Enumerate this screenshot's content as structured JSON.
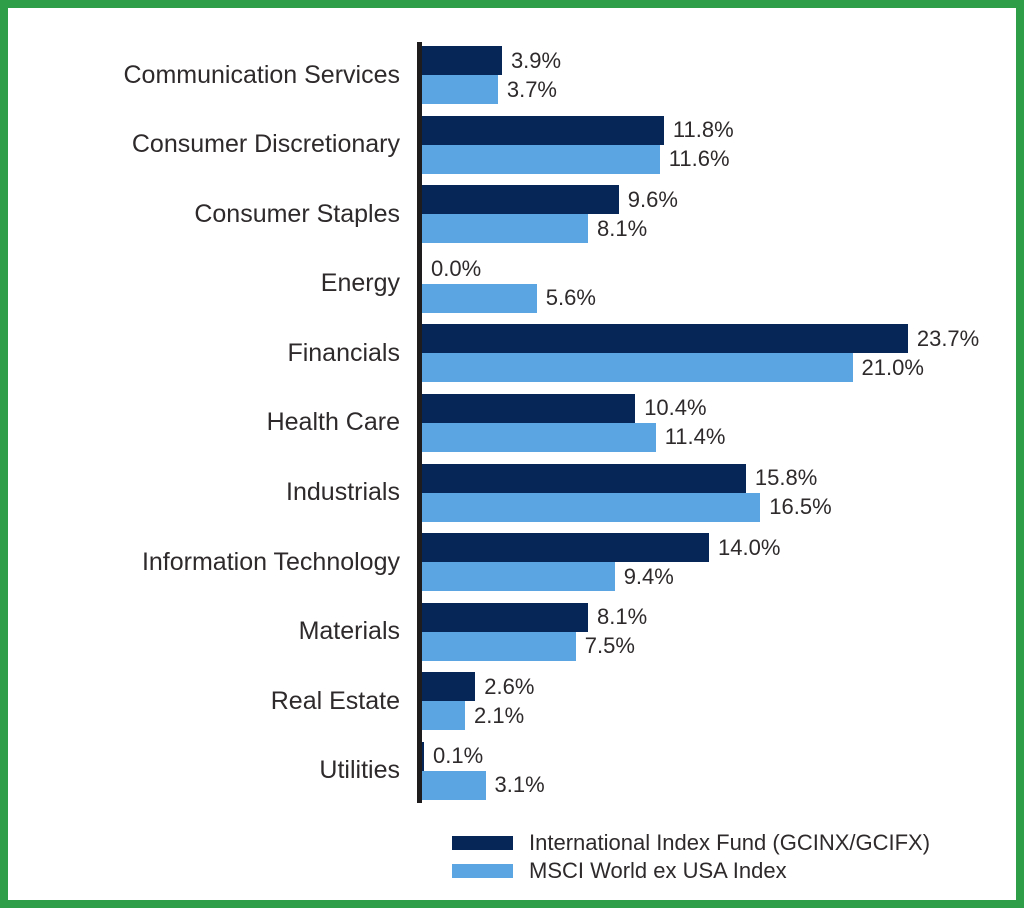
{
  "chart_data": {
    "type": "bar",
    "orientation": "horizontal",
    "title": "",
    "xlabel": "",
    "ylabel": "",
    "xlim": [
      0,
      28
    ],
    "grid": false,
    "legend_position": "bottom-right",
    "value_labels": "outside-end",
    "categories": [
      "Communication Services",
      "Consumer Discretionary",
      "Consumer Staples",
      "Energy",
      "Financials",
      "Health Care",
      "Industrials",
      "Information Technology",
      "Materials",
      "Real Estate",
      "Utilities"
    ],
    "series": [
      {
        "name": "International Index Fund (GCINX/GCIFX)",
        "color": "#052657",
        "values": [
          3.9,
          11.8,
          9.6,
          0.0,
          23.7,
          10.4,
          15.8,
          14.0,
          8.1,
          2.6,
          0.1
        ],
        "labels": [
          "3.9%",
          "11.8%",
          "9.6%",
          "0.0%",
          "23.7%",
          "10.4%",
          "15.8%",
          "14.0%",
          "8.1%",
          "2.6%",
          "0.1%"
        ]
      },
      {
        "name": "MSCI World ex USA Index",
        "color": "#5ba5e3",
        "values": [
          3.7,
          11.6,
          8.1,
          5.6,
          21.0,
          11.4,
          16.5,
          9.4,
          7.5,
          2.1,
          3.1
        ],
        "labels": [
          "3.7%",
          "11.6%",
          "8.1%",
          "5.6%",
          "21.0%",
          "11.4%",
          "16.5%",
          "9.4%",
          "7.5%",
          "2.1%",
          "3.1%"
        ]
      }
    ]
  },
  "legend": {
    "items": [
      {
        "label": "International Index Fund (GCINX/GCIFX)",
        "color": "#052657"
      },
      {
        "label": "MSCI World ex USA Index",
        "color": "#5ba5e3"
      }
    ]
  },
  "colors": {
    "fund": "#052657",
    "index": "#5ba5e3",
    "frame_border": "#2f9e48",
    "axis": "#1e1c1c",
    "text": "#2e2a2b",
    "background": "#ffffff"
  }
}
